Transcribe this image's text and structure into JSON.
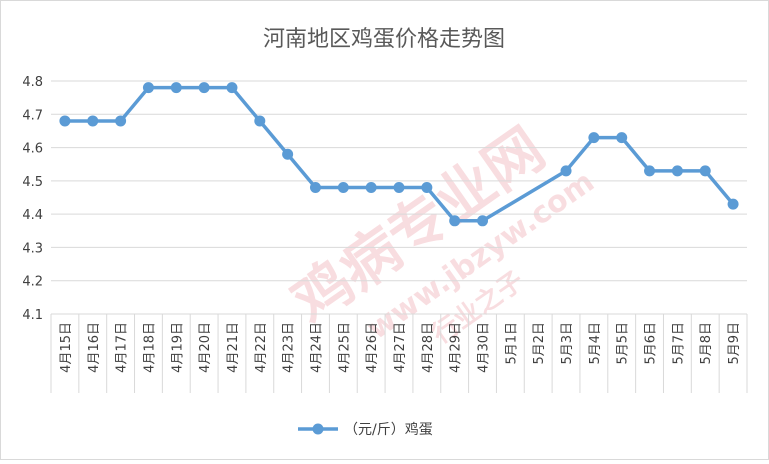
{
  "chart_data": {
    "type": "line",
    "title": "河南地区鸡蛋价格走势图",
    "xlabel": "",
    "ylabel": "",
    "categories": [
      "4月15日",
      "4月16日",
      "4月17日",
      "4月18日",
      "4月19日",
      "4月20日",
      "4月21日",
      "4月22日",
      "4月23日",
      "4月24日",
      "4月25日",
      "4月26日",
      "4月27日",
      "4月28日",
      "4月29日",
      "4月30日",
      "5月1日",
      "5月2日",
      "5月3日",
      "5月4日",
      "5月5日",
      "5月6日",
      "5月7日",
      "5月8日",
      "5月9日"
    ],
    "series": [
      {
        "name": "（元/斤）鸡蛋",
        "values": [
          4.68,
          4.68,
          4.68,
          4.78,
          4.78,
          4.78,
          4.78,
          4.68,
          4.58,
          4.48,
          4.48,
          4.48,
          4.48,
          4.48,
          4.38,
          4.38,
          null,
          null,
          4.53,
          4.63,
          4.63,
          4.53,
          4.53,
          4.53,
          4.43
        ],
        "color": "#5b9bd5"
      }
    ],
    "ylim": [
      4.1,
      4.8
    ],
    "yticks": [
      "4.1",
      "4.2",
      "4.3",
      "4.4",
      "4.5",
      "4.6",
      "4.7",
      "4.8"
    ],
    "grid": true,
    "legend_position": "bottom"
  },
  "watermark": {
    "main": "鸡病专业网",
    "url": "www.jbzyw.com",
    "sub": "行业之子"
  }
}
